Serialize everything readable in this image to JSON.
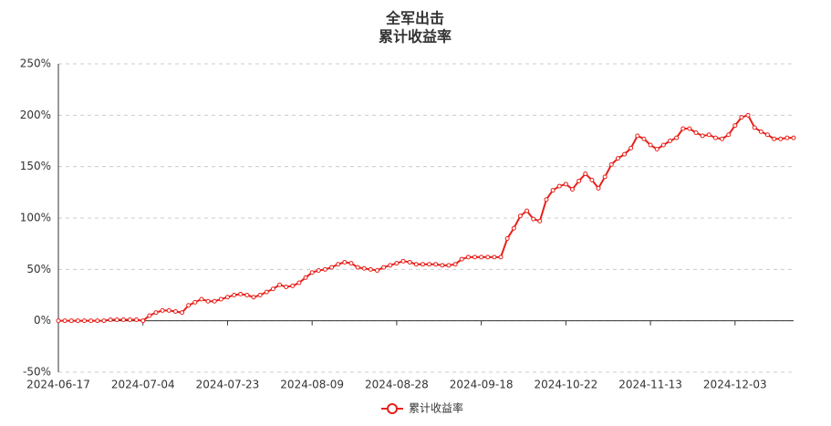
{
  "chart_data": {
    "type": "line",
    "title": "全军出击",
    "subtitle": "累计收益率",
    "categories": [
      "2024-06-17",
      null,
      null,
      null,
      null,
      null,
      null,
      null,
      null,
      null,
      null,
      null,
      null,
      "2024-07-04",
      null,
      null,
      null,
      null,
      null,
      null,
      null,
      null,
      null,
      null,
      null,
      null,
      "2024-07-23",
      null,
      null,
      null,
      null,
      null,
      null,
      null,
      null,
      null,
      null,
      null,
      null,
      "2024-08-09",
      null,
      null,
      null,
      null,
      null,
      null,
      null,
      null,
      null,
      null,
      null,
      null,
      "2024-08-28",
      null,
      null,
      null,
      null,
      null,
      null,
      null,
      null,
      null,
      null,
      null,
      null,
      "2024-09-18",
      null,
      null,
      null,
      null,
      null,
      null,
      null,
      null,
      null,
      null,
      null,
      null,
      "2024-10-22",
      null,
      null,
      null,
      null,
      null,
      null,
      null,
      null,
      null,
      null,
      null,
      null,
      "2024-11-13",
      null,
      null,
      null,
      null,
      null,
      null,
      null,
      null,
      null,
      null,
      null,
      null,
      "2024-12-03",
      null,
      null,
      null,
      null,
      null,
      null,
      null,
      null,
      null
    ],
    "series": [
      {
        "name": "累计收益率",
        "color": "#e8201a",
        "values": [
          0,
          0,
          0,
          0,
          0,
          0,
          0,
          0,
          1,
          1,
          1,
          1,
          1,
          0,
          5,
          8,
          10,
          10,
          9,
          8,
          15,
          18,
          21,
          19,
          19,
          21,
          23,
          25,
          26,
          25,
          23,
          25,
          28,
          31,
          35,
          33,
          34,
          37,
          42,
          47,
          49,
          50,
          52,
          55,
          57,
          56,
          52,
          51,
          50,
          49,
          52,
          54,
          56,
          58,
          57,
          55,
          55,
          55,
          55,
          54,
          54,
          55,
          60,
          62,
          62,
          62,
          62,
          62,
          62,
          80,
          90,
          102,
          107,
          99,
          97,
          118,
          127,
          131,
          133,
          128,
          136,
          143,
          137,
          129,
          140,
          152,
          158,
          162,
          168,
          180,
          177,
          171,
          167,
          171,
          175,
          178,
          187,
          187,
          183,
          180,
          181,
          178,
          177,
          181,
          190,
          198,
          200,
          188,
          184,
          181,
          177,
          177,
          178,
          178
        ]
      }
    ],
    "ylim": [
      -50,
      250
    ],
    "yticks": [
      {
        "value": -50,
        "label": "-50%"
      },
      {
        "value": 0,
        "label": "0%"
      },
      {
        "value": 50,
        "label": "50%"
      },
      {
        "value": 100,
        "label": "100%"
      },
      {
        "value": 150,
        "label": "150%"
      },
      {
        "value": 200,
        "label": "200%"
      },
      {
        "value": 250,
        "label": "250%"
      }
    ],
    "grid": true
  }
}
